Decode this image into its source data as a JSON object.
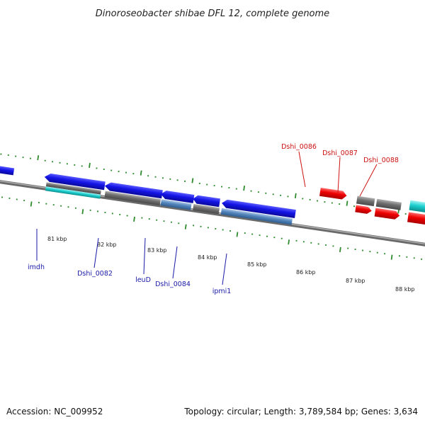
{
  "title": "Dinoroseobacter shibae DFL 12, complete genome",
  "footer": {
    "accession": "Accession: NC_009952",
    "summary": "Topology: circular; Length: 3,789,584 bp; Genes: 3,634"
  },
  "scale_labels": [
    "81 kbp",
    "82 kbp",
    "83 kbp",
    "84 kbp",
    "85 kbp",
    "86 kbp",
    "87 kbp",
    "88 kbp"
  ],
  "gene_labels": {
    "imdh": "imdh",
    "dshi_0082": "Dshi_0082",
    "leuD": "leuD",
    "dshi_0084": "Dshi_0084",
    "ipmi1": "ipmi1",
    "dshi_0086": "Dshi_0086",
    "dshi_0087": "Dshi_0087",
    "dshi_0088": "Dshi_0088"
  },
  "colors": {
    "forward_cds": "#ff0000",
    "reverse_cds": "#1010e0",
    "rna": "#18c8c8",
    "orf": "#707070",
    "gene_feature": "#4a7fb5",
    "backbone": "#888888",
    "ticks": "#2e8b2e"
  }
}
